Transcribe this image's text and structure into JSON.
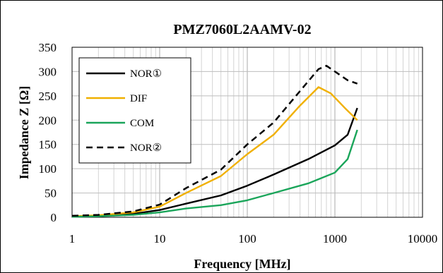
{
  "chart_data": {
    "type": "line",
    "title": "PMZ7060L2AAMV-02",
    "xlabel": "Frequency [MHz]",
    "ylabel": "Impedance Z [Ω]",
    "xscale": "log",
    "xlim": [
      1,
      10000
    ],
    "ylim": [
      0,
      350
    ],
    "x_ticks": [
      "1",
      "10",
      "100",
      "1000",
      "10000"
    ],
    "y_ticks": [
      "0",
      "50",
      "100",
      "150",
      "200",
      "250",
      "300",
      "350"
    ],
    "grid": true,
    "legend_position": "top-left",
    "series": [
      {
        "name": "NOR①",
        "color": "#000000",
        "style": "solid",
        "points": [
          [
            1,
            1
          ],
          [
            2,
            3
          ],
          [
            5,
            7
          ],
          [
            10,
            15
          ],
          [
            20,
            28
          ],
          [
            50,
            45
          ],
          [
            100,
            65
          ],
          [
            200,
            88
          ],
          [
            500,
            120
          ],
          [
            1000,
            148
          ],
          [
            1400,
            170
          ],
          [
            1800,
            225
          ]
        ]
      },
      {
        "name": "DIF",
        "color": "#f0b000",
        "style": "solid",
        "points": [
          [
            1,
            2
          ],
          [
            2,
            4
          ],
          [
            5,
            10
          ],
          [
            10,
            22
          ],
          [
            20,
            50
          ],
          [
            50,
            85
          ],
          [
            100,
            130
          ],
          [
            200,
            170
          ],
          [
            400,
            230
          ],
          [
            650,
            268
          ],
          [
            900,
            255
          ],
          [
            1300,
            225
          ],
          [
            1800,
            200
          ]
        ]
      },
      {
        "name": "COM",
        "color": "#1aa55a",
        "style": "solid",
        "points": [
          [
            1,
            1
          ],
          [
            2,
            2
          ],
          [
            5,
            5
          ],
          [
            10,
            10
          ],
          [
            20,
            18
          ],
          [
            50,
            25
          ],
          [
            100,
            35
          ],
          [
            200,
            50
          ],
          [
            500,
            70
          ],
          [
            1000,
            92
          ],
          [
            1400,
            120
          ],
          [
            1800,
            180
          ]
        ]
      },
      {
        "name": "NOR②",
        "color": "#000000",
        "style": "dashed",
        "points": [
          [
            1,
            3
          ],
          [
            2,
            5
          ],
          [
            5,
            12
          ],
          [
            10,
            26
          ],
          [
            20,
            60
          ],
          [
            50,
            98
          ],
          [
            100,
            150
          ],
          [
            200,
            195
          ],
          [
            400,
            260
          ],
          [
            650,
            305
          ],
          [
            800,
            312
          ],
          [
            1000,
            300
          ],
          [
            1400,
            282
          ],
          [
            1800,
            275
          ]
        ]
      }
    ]
  }
}
